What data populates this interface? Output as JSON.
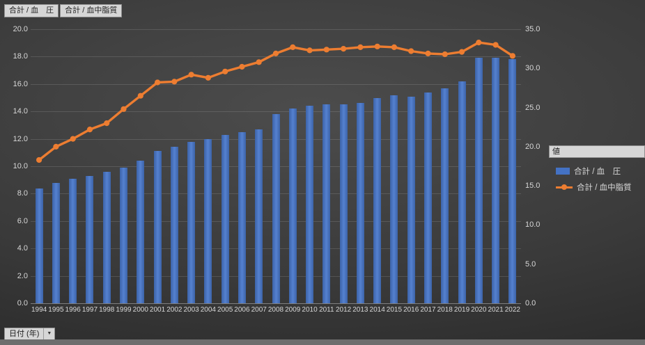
{
  "field_buttons": {
    "blood_pressure": "合計 / 血　圧",
    "blood_lipid": "合計 / 血中脂質"
  },
  "legend": {
    "title": "値",
    "items": [
      {
        "label": "合計 / 血　圧",
        "marker": "bar",
        "color": "#4472C4"
      },
      {
        "label": "合計 / 血中脂質",
        "marker": "line",
        "color": "#ED7D31"
      }
    ]
  },
  "footer": {
    "date_field_label": "日付 (年)",
    "dropdown_arrow": "▼"
  },
  "chart_data": {
    "type": "combo",
    "title": "",
    "grid": true,
    "legend_position": "right",
    "xlabel": "日付 (年)",
    "categories": [
      "1994",
      "1995",
      "1996",
      "1997",
      "1998",
      "1999",
      "2000",
      "2001",
      "2002",
      "2003",
      "2004",
      "2005",
      "2006",
      "2007",
      "2008",
      "2009",
      "2010",
      "2011",
      "2012",
      "2013",
      "2014",
      "2015",
      "2016",
      "2017",
      "2018",
      "2019",
      "2020",
      "2021",
      "2022"
    ],
    "series": [
      {
        "name": "合計 / 血　圧",
        "chart_type": "bar",
        "axis": "left",
        "color": "#4472C4",
        "values": [
          8.4,
          8.8,
          9.1,
          9.3,
          9.6,
          9.9,
          10.4,
          11.1,
          11.4,
          11.8,
          12.0,
          12.3,
          12.5,
          12.7,
          13.8,
          14.2,
          14.4,
          14.5,
          14.5,
          14.6,
          15.0,
          15.2,
          15.1,
          15.4,
          15.7,
          16.2,
          17.9,
          17.9,
          17.8
        ]
      },
      {
        "name": "合計 / 血中脂質",
        "chart_type": "line",
        "axis": "right",
        "color": "#ED7D31",
        "values": [
          18.3,
          20.0,
          21.0,
          22.2,
          23.0,
          24.8,
          26.5,
          28.2,
          28.3,
          29.2,
          28.8,
          29.6,
          30.2,
          30.8,
          31.9,
          32.7,
          32.3,
          32.4,
          32.5,
          32.7,
          32.8,
          32.7,
          32.2,
          31.9,
          31.8,
          32.1,
          33.3,
          33.0,
          31.6
        ]
      }
    ],
    "left_axis": {
      "min": 0,
      "max": 20,
      "step": 2,
      "tick_labels": [
        "0.0",
        "2.0",
        "4.0",
        "6.0",
        "8.0",
        "10.0",
        "12.0",
        "14.0",
        "16.0",
        "18.0",
        "20.0"
      ]
    },
    "right_axis": {
      "min": 0,
      "max": 35,
      "step": 5,
      "tick_labels": [
        "0.0",
        "5.0",
        "10.0",
        "15.0",
        "20.0",
        "25.0",
        "30.0",
        "35.0"
      ]
    }
  }
}
